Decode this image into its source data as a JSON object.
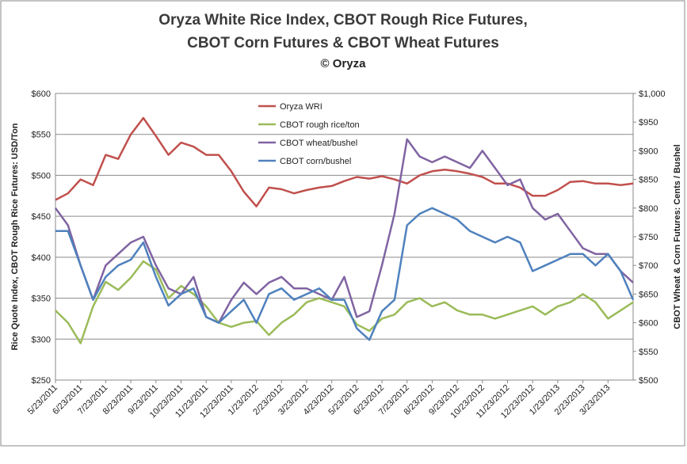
{
  "chart_data": {
    "type": "line",
    "title": "Oryza White Rice Index, CBOT Rough Rice Futures,",
    "subtitle": "CBOT Corn Futures & CBOT Wheat Futures",
    "credit": "© Oryza",
    "y_label": "Rice Quote Index, CBOT Rough Rice Futures: USD/Ton",
    "y2_label": "CBOT Wheat & Corn Futures: Cents / Bushel",
    "categories": [
      "5/23/2011",
      null,
      "6/23/2011",
      null,
      "7/23/2011",
      null,
      "8/23/2011",
      null,
      "9/23/2011",
      null,
      "10/23/2011",
      null,
      "11/23/2011",
      null,
      "12/23/2011",
      null,
      "1/23/2012",
      null,
      "2/23/2012",
      null,
      "3/23/2012",
      null,
      "4/23/2012",
      null,
      "5/23/2012",
      null,
      "6/23/2012",
      null,
      "7/23/2012",
      null,
      "8/23/2012",
      null,
      "9/23/2012",
      null,
      "10/23/2012",
      null,
      "11/23/2012",
      null,
      "12/23/2012",
      null,
      "1/23/2013",
      null,
      "2/23/2013",
      null,
      "3/23/2013",
      null,
      null
    ],
    "series": [
      {
        "name": "Oryza WRI",
        "color": "#c0504d",
        "axis": "y",
        "values": [
          470,
          478,
          495,
          488,
          525,
          520,
          550,
          570,
          548,
          525,
          540,
          535,
          525,
          525,
          505,
          480,
          462,
          485,
          483,
          478,
          482,
          485,
          487,
          493,
          498,
          496,
          499,
          495,
          490,
          500,
          505,
          507,
          505,
          502,
          498,
          490,
          490,
          485,
          475,
          475,
          482,
          492,
          493,
          490,
          490,
          488,
          490
        ]
      },
      {
        "name": "CBOT rough rice/ton",
        "color": "#9bbb59",
        "axis": "y",
        "values": [
          335,
          320,
          295,
          340,
          370,
          360,
          375,
          395,
          385,
          350,
          365,
          355,
          340,
          320,
          315,
          320,
          322,
          305,
          320,
          330,
          345,
          350,
          345,
          340,
          318,
          310,
          325,
          330,
          345,
          350,
          340,
          345,
          335,
          330,
          330,
          325,
          330,
          335,
          340,
          330,
          340,
          345,
          355,
          345,
          325,
          335,
          345
        ]
      },
      {
        "name": "CBOT wheat/bushel",
        "color": "#8064a2",
        "axis": "y2",
        "values": [
          800,
          770,
          700,
          640,
          700,
          720,
          740,
          750,
          700,
          660,
          650,
          680,
          610,
          600,
          640,
          670,
          650,
          670,
          680,
          660,
          660,
          650,
          640,
          680,
          610,
          620,
          700,
          790,
          920,
          890,
          880,
          890,
          880,
          870,
          900,
          870,
          840,
          850,
          800,
          780,
          790,
          760,
          730,
          720,
          720,
          690,
          670
        ]
      },
      {
        "name": "CBOT corn/bushel",
        "color": "#4f81bd",
        "axis": "y2",
        "values": [
          760,
          760,
          700,
          640,
          680,
          700,
          710,
          740,
          680,
          630,
          650,
          660,
          610,
          600,
          620,
          640,
          600,
          650,
          660,
          640,
          650,
          660,
          640,
          640,
          590,
          570,
          620,
          640,
          770,
          790,
          800,
          790,
          780,
          760,
          750,
          740,
          750,
          740,
          690,
          700,
          710,
          720,
          720,
          700,
          720,
          690,
          640
        ]
      }
    ],
    "ylim": [
      250,
      600
    ],
    "yticks": [
      {
        "value": 250,
        "label": "$250"
      },
      {
        "value": 300,
        "label": "$300"
      },
      {
        "value": 350,
        "label": "$350"
      },
      {
        "value": 400,
        "label": "$400"
      },
      {
        "value": 450,
        "label": "$450"
      },
      {
        "value": 500,
        "label": "$500"
      },
      {
        "value": 550,
        "label": "$550"
      },
      {
        "value": 600,
        "label": "$600"
      }
    ],
    "y2lim": [
      500,
      1000
    ],
    "y2ticks": [
      {
        "value": 500,
        "label": "$500"
      },
      {
        "value": 550,
        "label": "$550"
      },
      {
        "value": 600,
        "label": "$600"
      },
      {
        "value": 650,
        "label": "$650"
      },
      {
        "value": 700,
        "label": "$700"
      },
      {
        "value": 750,
        "label": "$750"
      },
      {
        "value": 800,
        "label": "$800"
      },
      {
        "value": 850,
        "label": "$850"
      },
      {
        "value": 900,
        "label": "$900"
      },
      {
        "value": 950,
        "label": "$950"
      },
      {
        "value": 1000,
        "label": "$1,000"
      }
    ],
    "grid": true,
    "legend": "top"
  }
}
